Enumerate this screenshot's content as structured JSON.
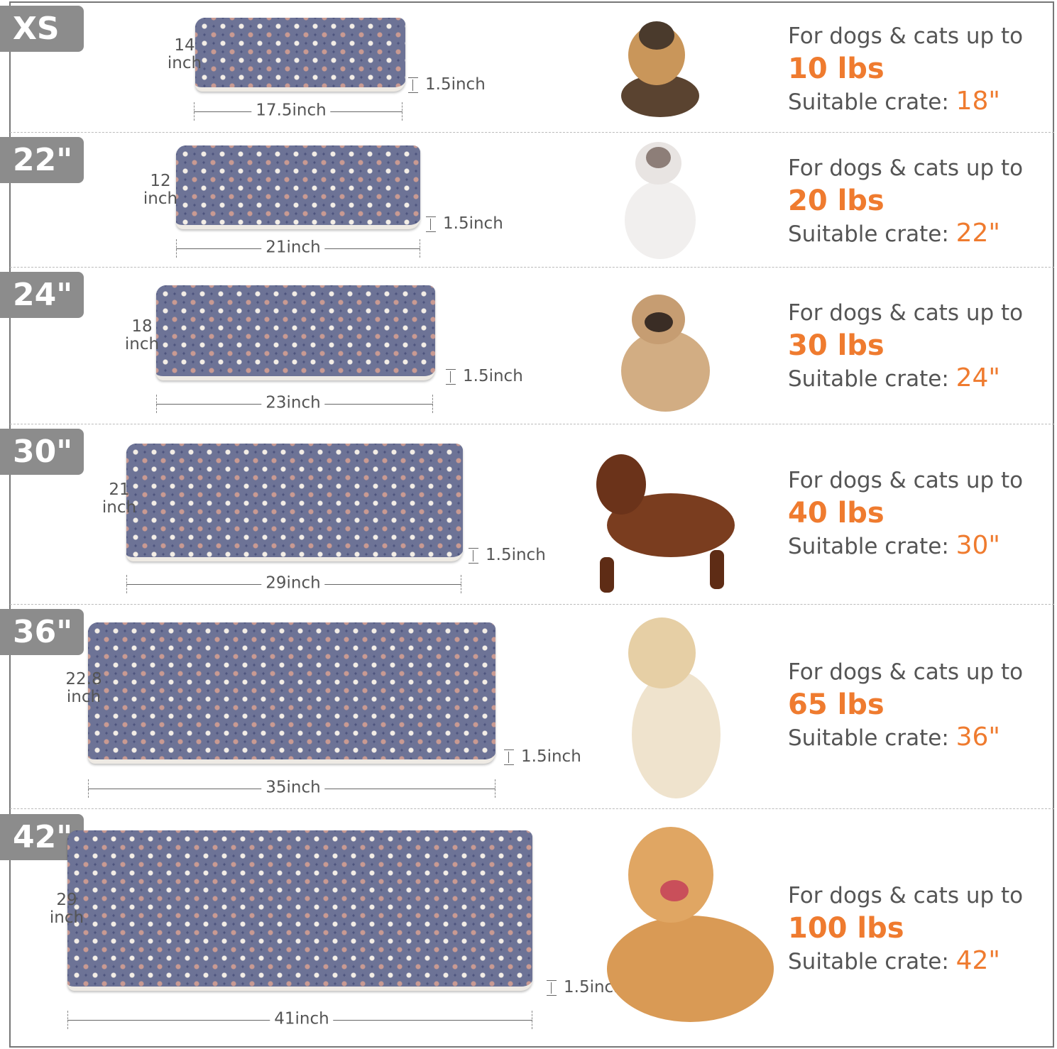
{
  "colors": {
    "accent": "#ef7b2f",
    "label_bg": "#8c8c8c",
    "mat": "#4b527c"
  },
  "common": {
    "weight_prefix": "For dogs & cats up to",
    "crate_prefix": "Suitable crate: "
  },
  "rows": [
    {
      "size": "XS",
      "depth": "14",
      "depth_unit": "inch",
      "width": "17.5inch",
      "height": "1.5inch",
      "weight": "10 lbs",
      "crate": "18\"",
      "animal": "yorkshire-terrier-puppy"
    },
    {
      "size": "22\"",
      "depth": "12",
      "depth_unit": "inch",
      "width": "21inch",
      "height": "1.5inch",
      "weight": "20 lbs",
      "crate": "22\"",
      "animal": "ragdoll-cat"
    },
    {
      "size": "24\"",
      "depth": "18",
      "depth_unit": "inch",
      "width": "23inch",
      "height": "1.5inch",
      "weight": "30 lbs",
      "crate": "24\"",
      "animal": "french-bulldog"
    },
    {
      "size": "30\"",
      "depth": "21",
      "depth_unit": "inch",
      "width": "29inch",
      "height": "1.5inch",
      "weight": "40 lbs",
      "crate": "30\"",
      "animal": "dachshund"
    },
    {
      "size": "36\"",
      "depth": "22.8",
      "depth_unit": "inch",
      "width": "35inch",
      "height": "1.5inch",
      "weight": "65 lbs",
      "crate": "36\"",
      "animal": "golden-retriever-sitting"
    },
    {
      "size": "42\"",
      "depth": "29",
      "depth_unit": "inch",
      "width": "41inch",
      "height": "1.5inch",
      "weight": "100 lbs",
      "crate": "42\"",
      "animal": "golden-retriever-lying"
    }
  ]
}
